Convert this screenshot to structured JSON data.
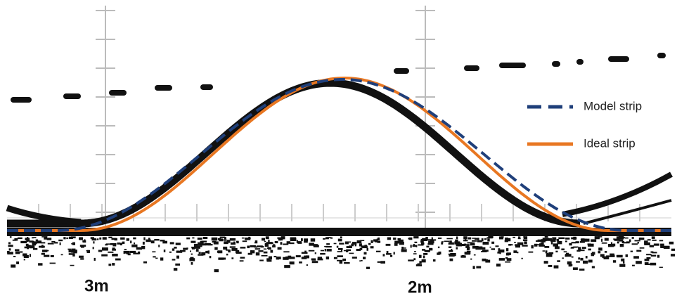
{
  "legend": {
    "items": [
      "Model strip",
      "Ideal strip"
    ]
  },
  "labels": [
    "3m",
    "2m"
  ]
}
